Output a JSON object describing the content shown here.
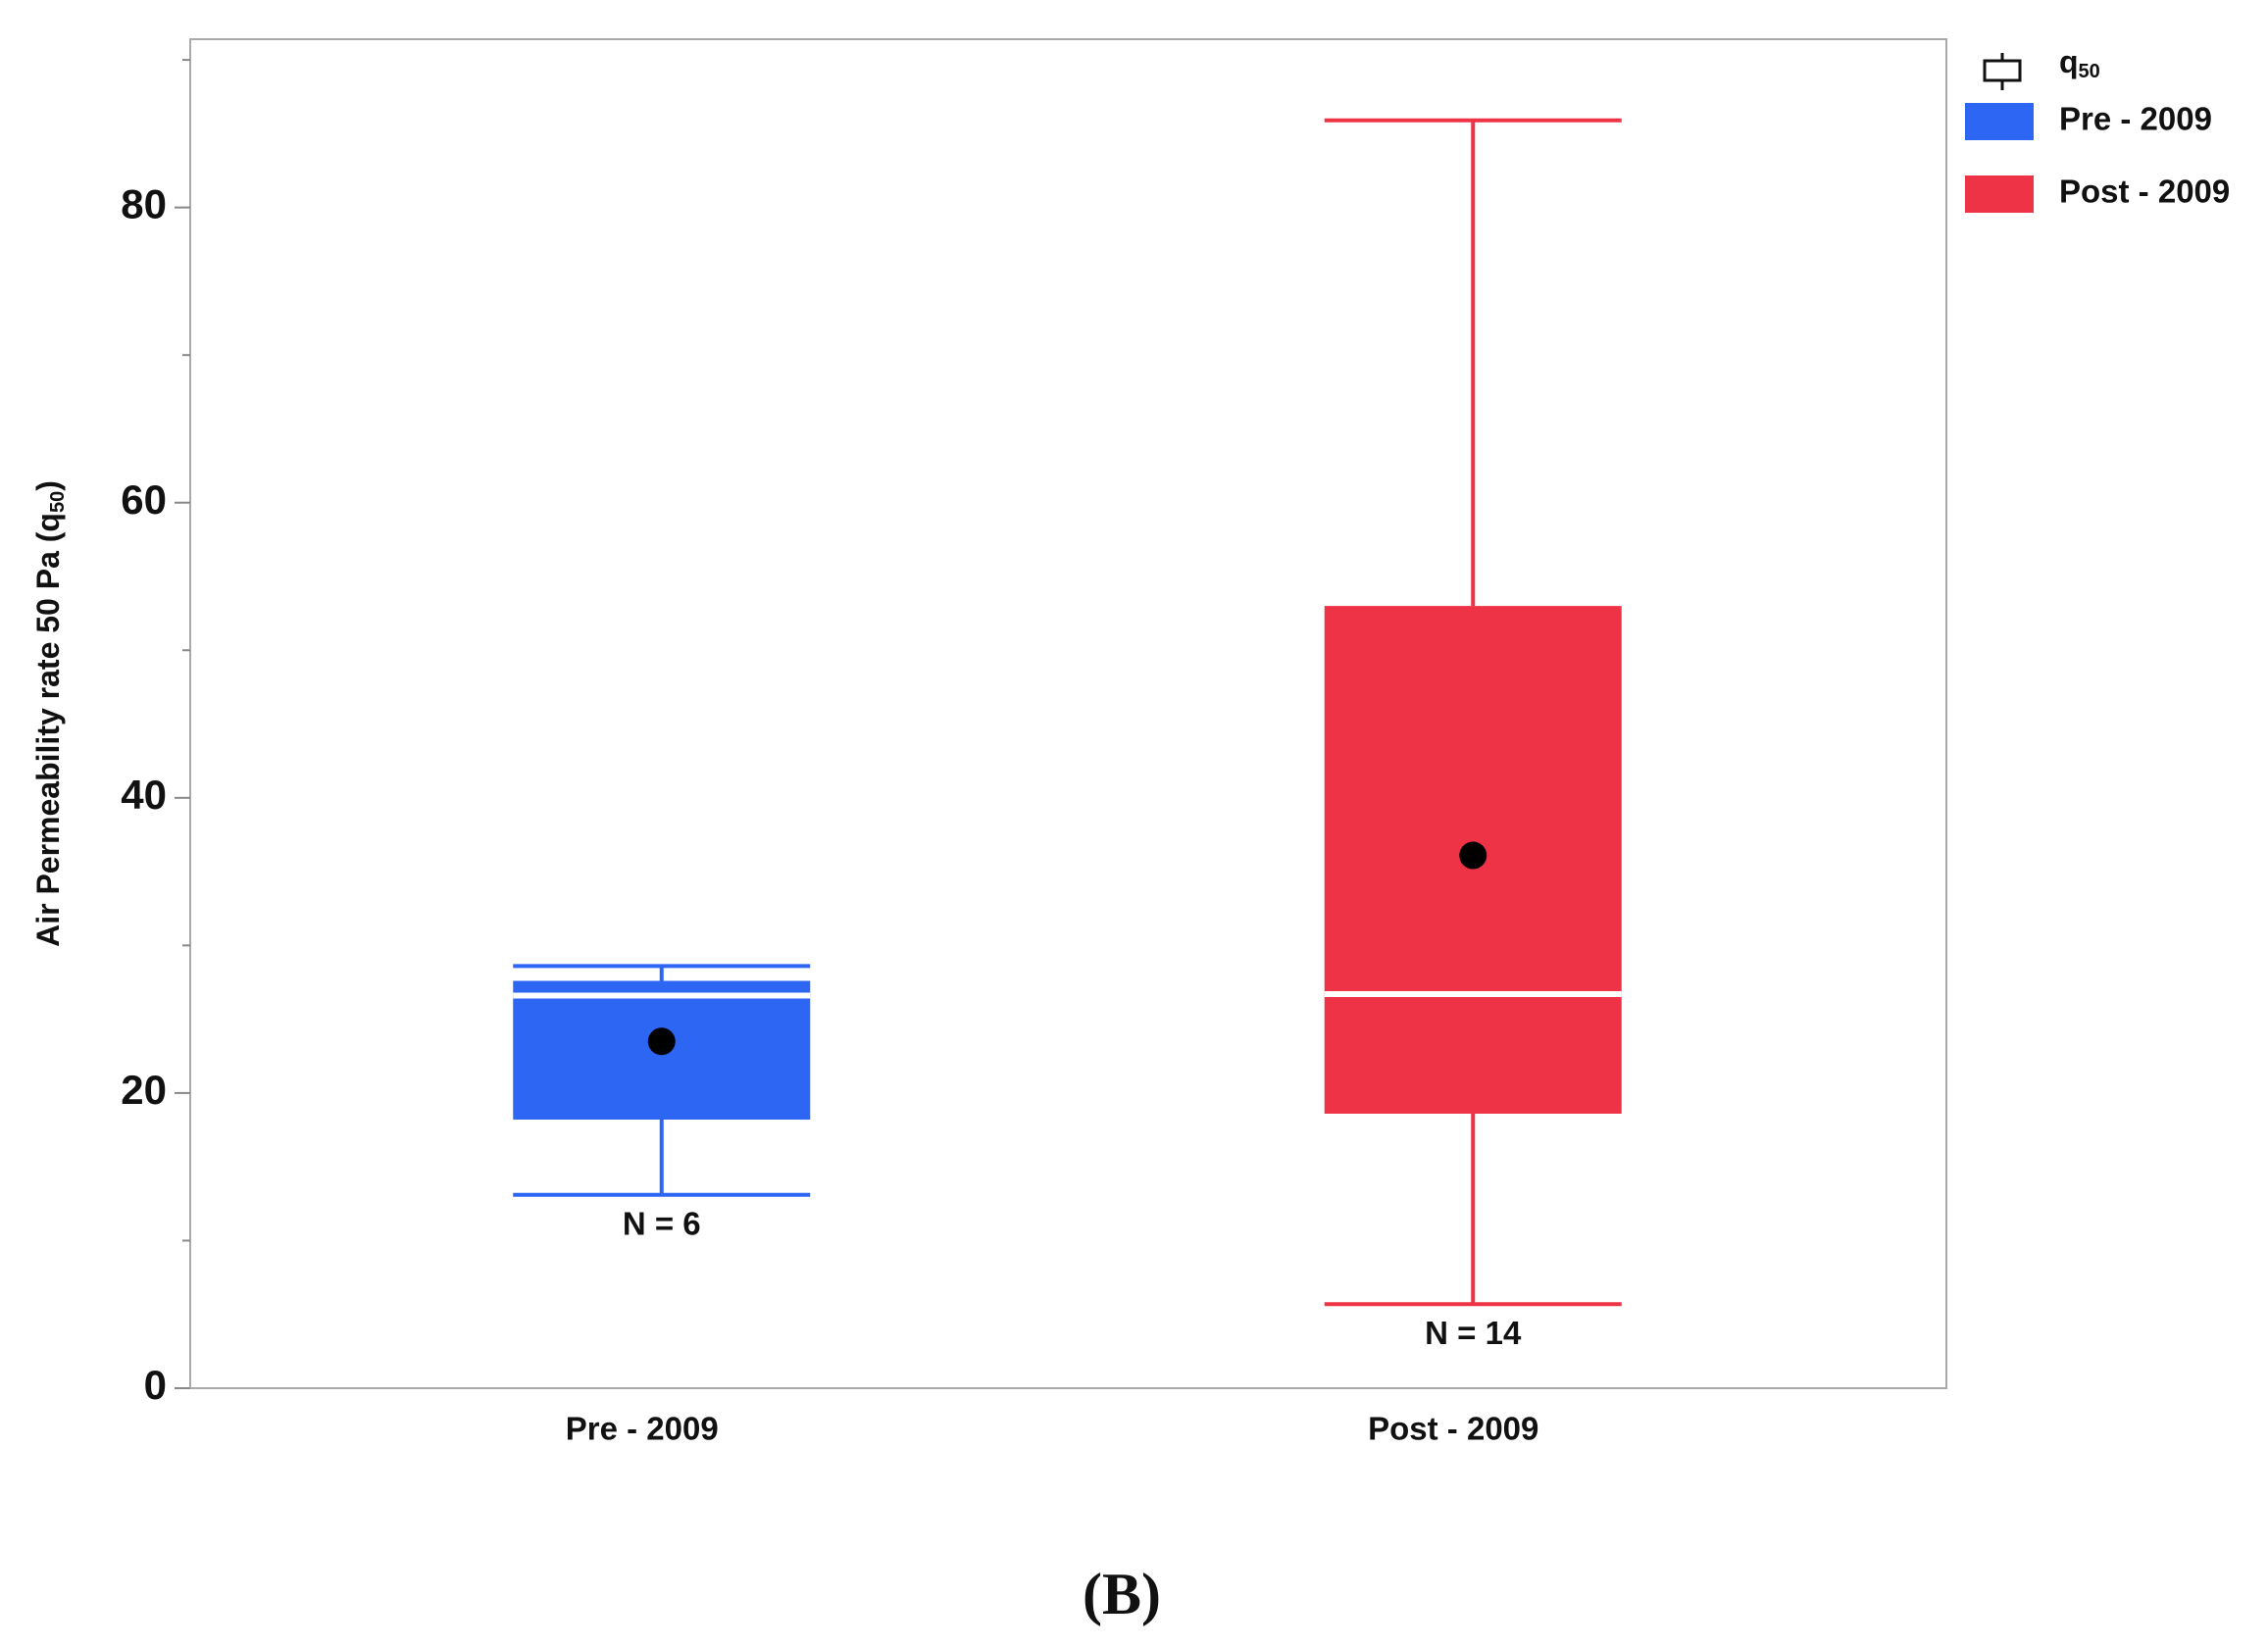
{
  "chart_data": {
    "type": "box",
    "y_label": {
      "text": "Air Permeability rate 50 Pa (q",
      "sub": "50",
      "end": ")"
    },
    "legend_title": {
      "text": "q",
      "sub": "50"
    },
    "categories": [
      "Pre - 2009",
      "Post - 2009"
    ],
    "series": [
      {
        "name": "Pre - 2009",
        "color": "#2e66f4",
        "min": 13.1,
        "q1": 18.2,
        "median": 26.6,
        "q3": 27.6,
        "max": 28.6,
        "mean": 23.5,
        "n_label": "N = 6"
      },
      {
        "name": "Post - 2009",
        "color": "#ee3346",
        "min": 5.7,
        "q1": 18.6,
        "median": 26.7,
        "q3": 53.0,
        "max": 85.9,
        "mean": 36.1,
        "n_label": "N = 14"
      }
    ],
    "ylim": [
      0,
      91.4
    ],
    "yticks": [
      0,
      20,
      40,
      60,
      80
    ],
    "minor_yticks": [
      10,
      30,
      50,
      70,
      90
    ],
    "caption": "(B)"
  }
}
